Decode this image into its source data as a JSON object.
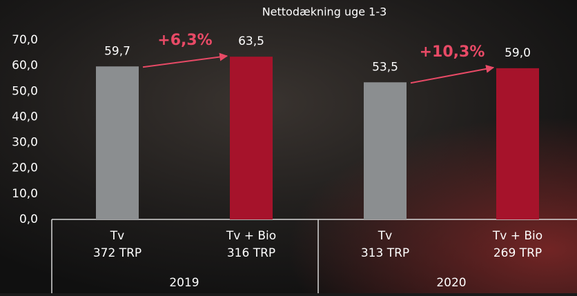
{
  "chart_data": {
    "type": "bar",
    "title": "Nettodækning uge 1-3",
    "categories": [
      "Tv",
      "Tv + Bio",
      "Tv",
      "Tv + Bio"
    ],
    "category_sublabels": [
      "372 TRP",
      "316 TRP",
      "313 TRP",
      "269 TRP"
    ],
    "groups": [
      "2019",
      "2020"
    ],
    "values": [
      59.7,
      63.5,
      53.5,
      59.0
    ],
    "value_labels": [
      "59,7",
      "63,5",
      "53,5",
      "59,0"
    ],
    "colors": [
      "#8b8e90",
      "#a6132b",
      "#8b8e90",
      "#a6132b"
    ],
    "annotations": [
      "+6,3%",
      "+10,3%"
    ],
    "annotation_color": "#e84a66",
    "ylim": [
      0,
      70
    ],
    "yticks": [
      {
        "value": 0,
        "label": "0,0"
      },
      {
        "value": 10,
        "label": "10,0"
      },
      {
        "value": 20,
        "label": "20,0"
      },
      {
        "value": 30,
        "label": "30,0"
      },
      {
        "value": 40,
        "label": "40,0"
      },
      {
        "value": 50,
        "label": "50,0"
      },
      {
        "value": 60,
        "label": "60,0"
      },
      {
        "value": 70,
        "label": "70,0"
      }
    ],
    "grid": false
  }
}
